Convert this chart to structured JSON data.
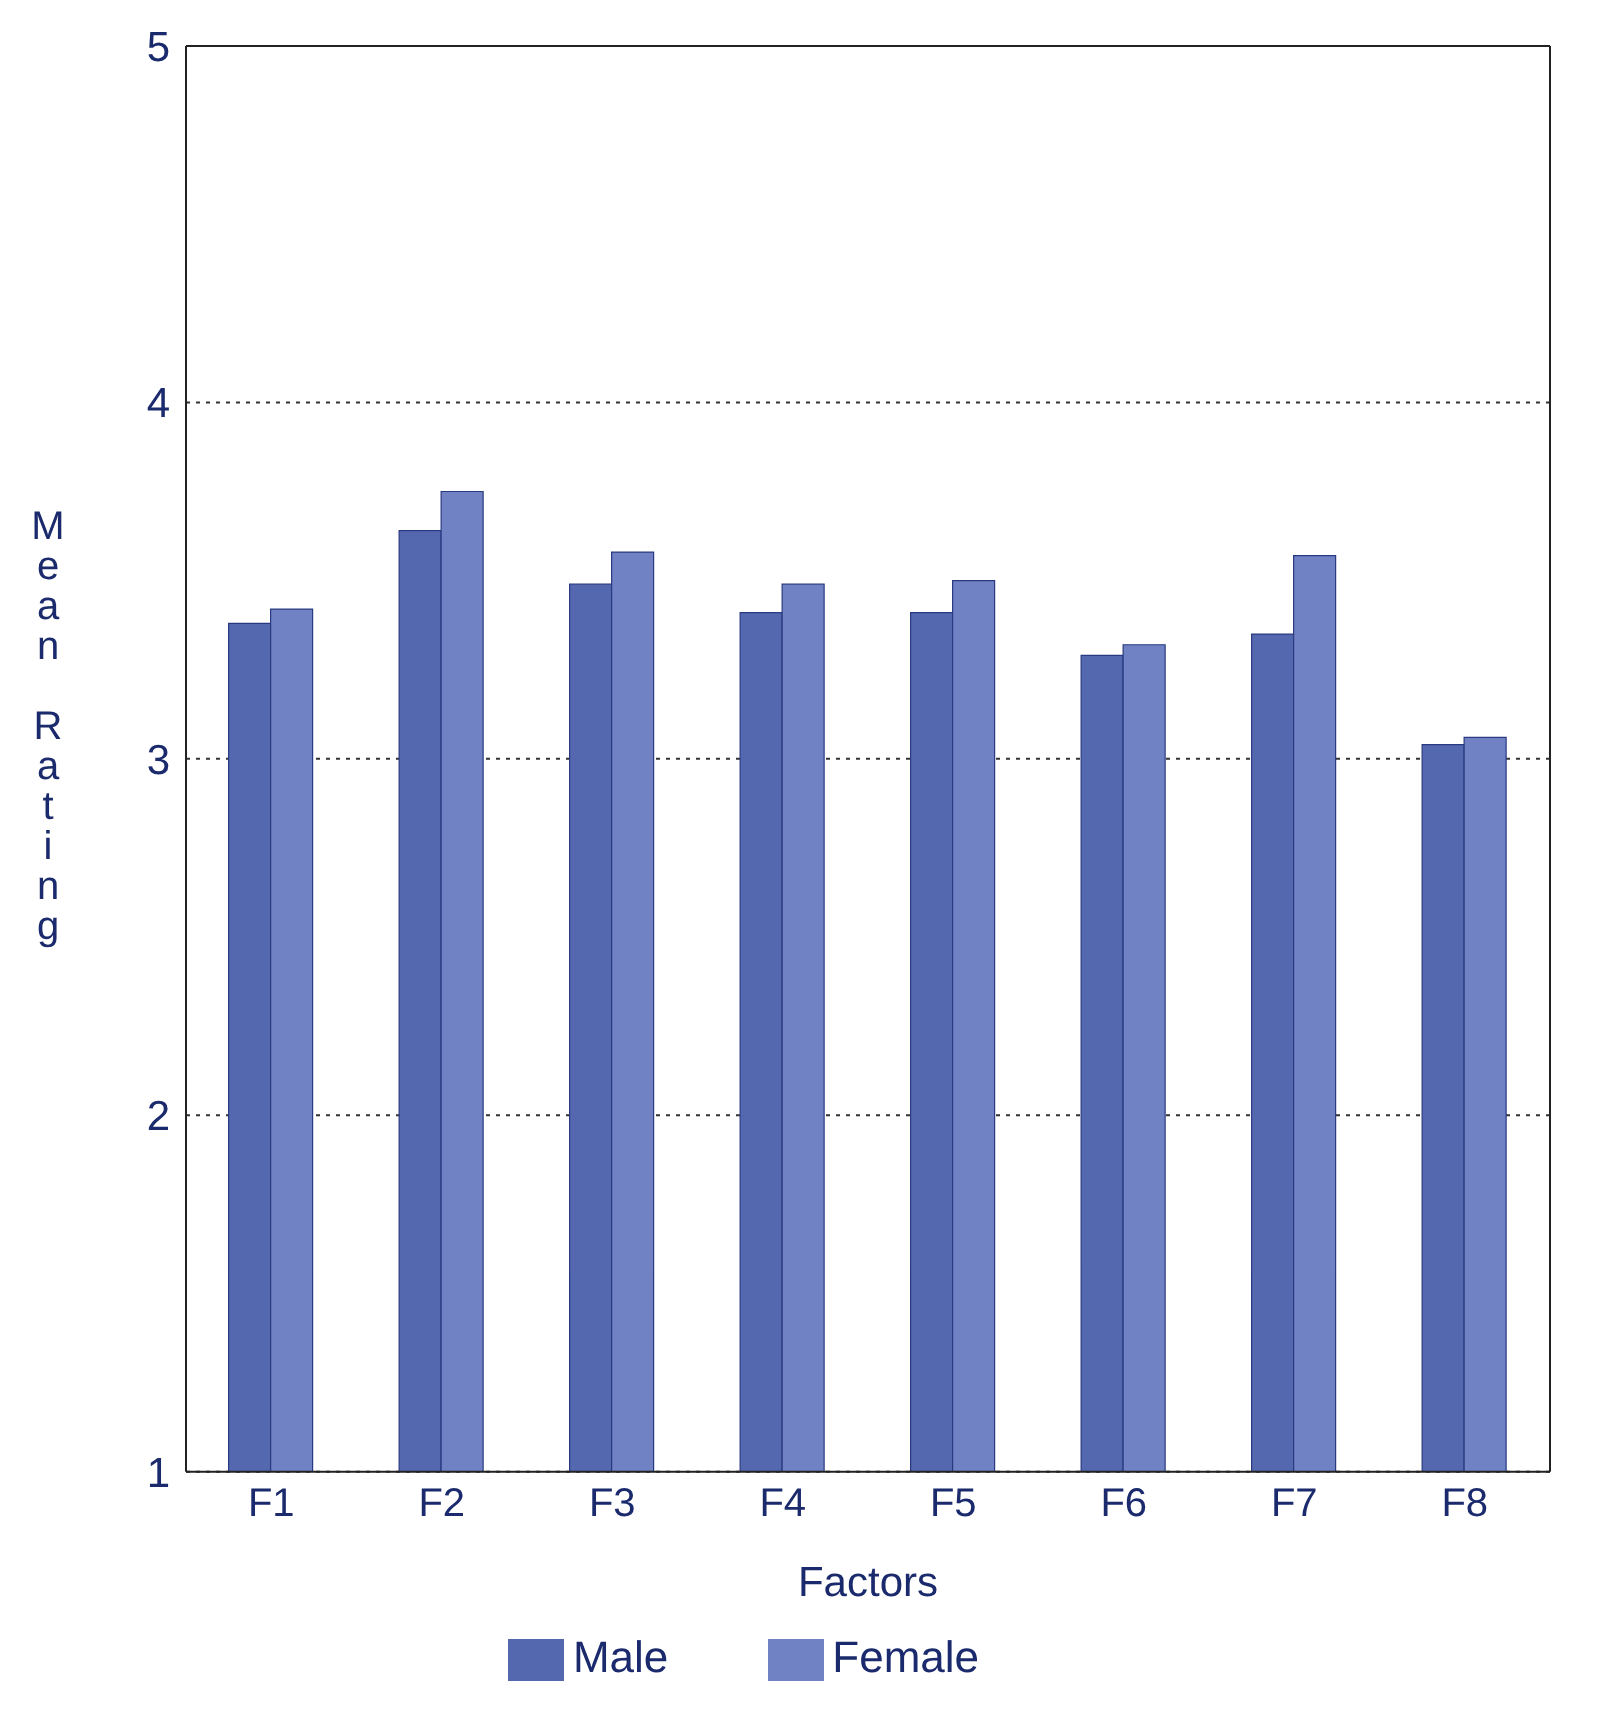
{
  "chart_data": {
    "type": "bar",
    "xlabel": "Factors",
    "ylabel": "Mean Rating",
    "categories": [
      "F1",
      "F2",
      "F3",
      "F4",
      "F5",
      "F6",
      "F7",
      "F8"
    ],
    "series": [
      {
        "name": "Male",
        "color": "#5468b0",
        "values": [
          3.38,
          3.64,
          3.49,
          3.41,
          3.41,
          3.29,
          3.35,
          3.04
        ]
      },
      {
        "name": "Female",
        "color": "#7082c4",
        "values": [
          3.42,
          3.75,
          3.58,
          3.49,
          3.5,
          3.32,
          3.57,
          3.06
        ]
      }
    ],
    "ylim": [
      1,
      5
    ],
    "yticks": [
      1,
      2,
      3,
      4,
      5
    ],
    "grid": "y",
    "legend": "bottom"
  }
}
